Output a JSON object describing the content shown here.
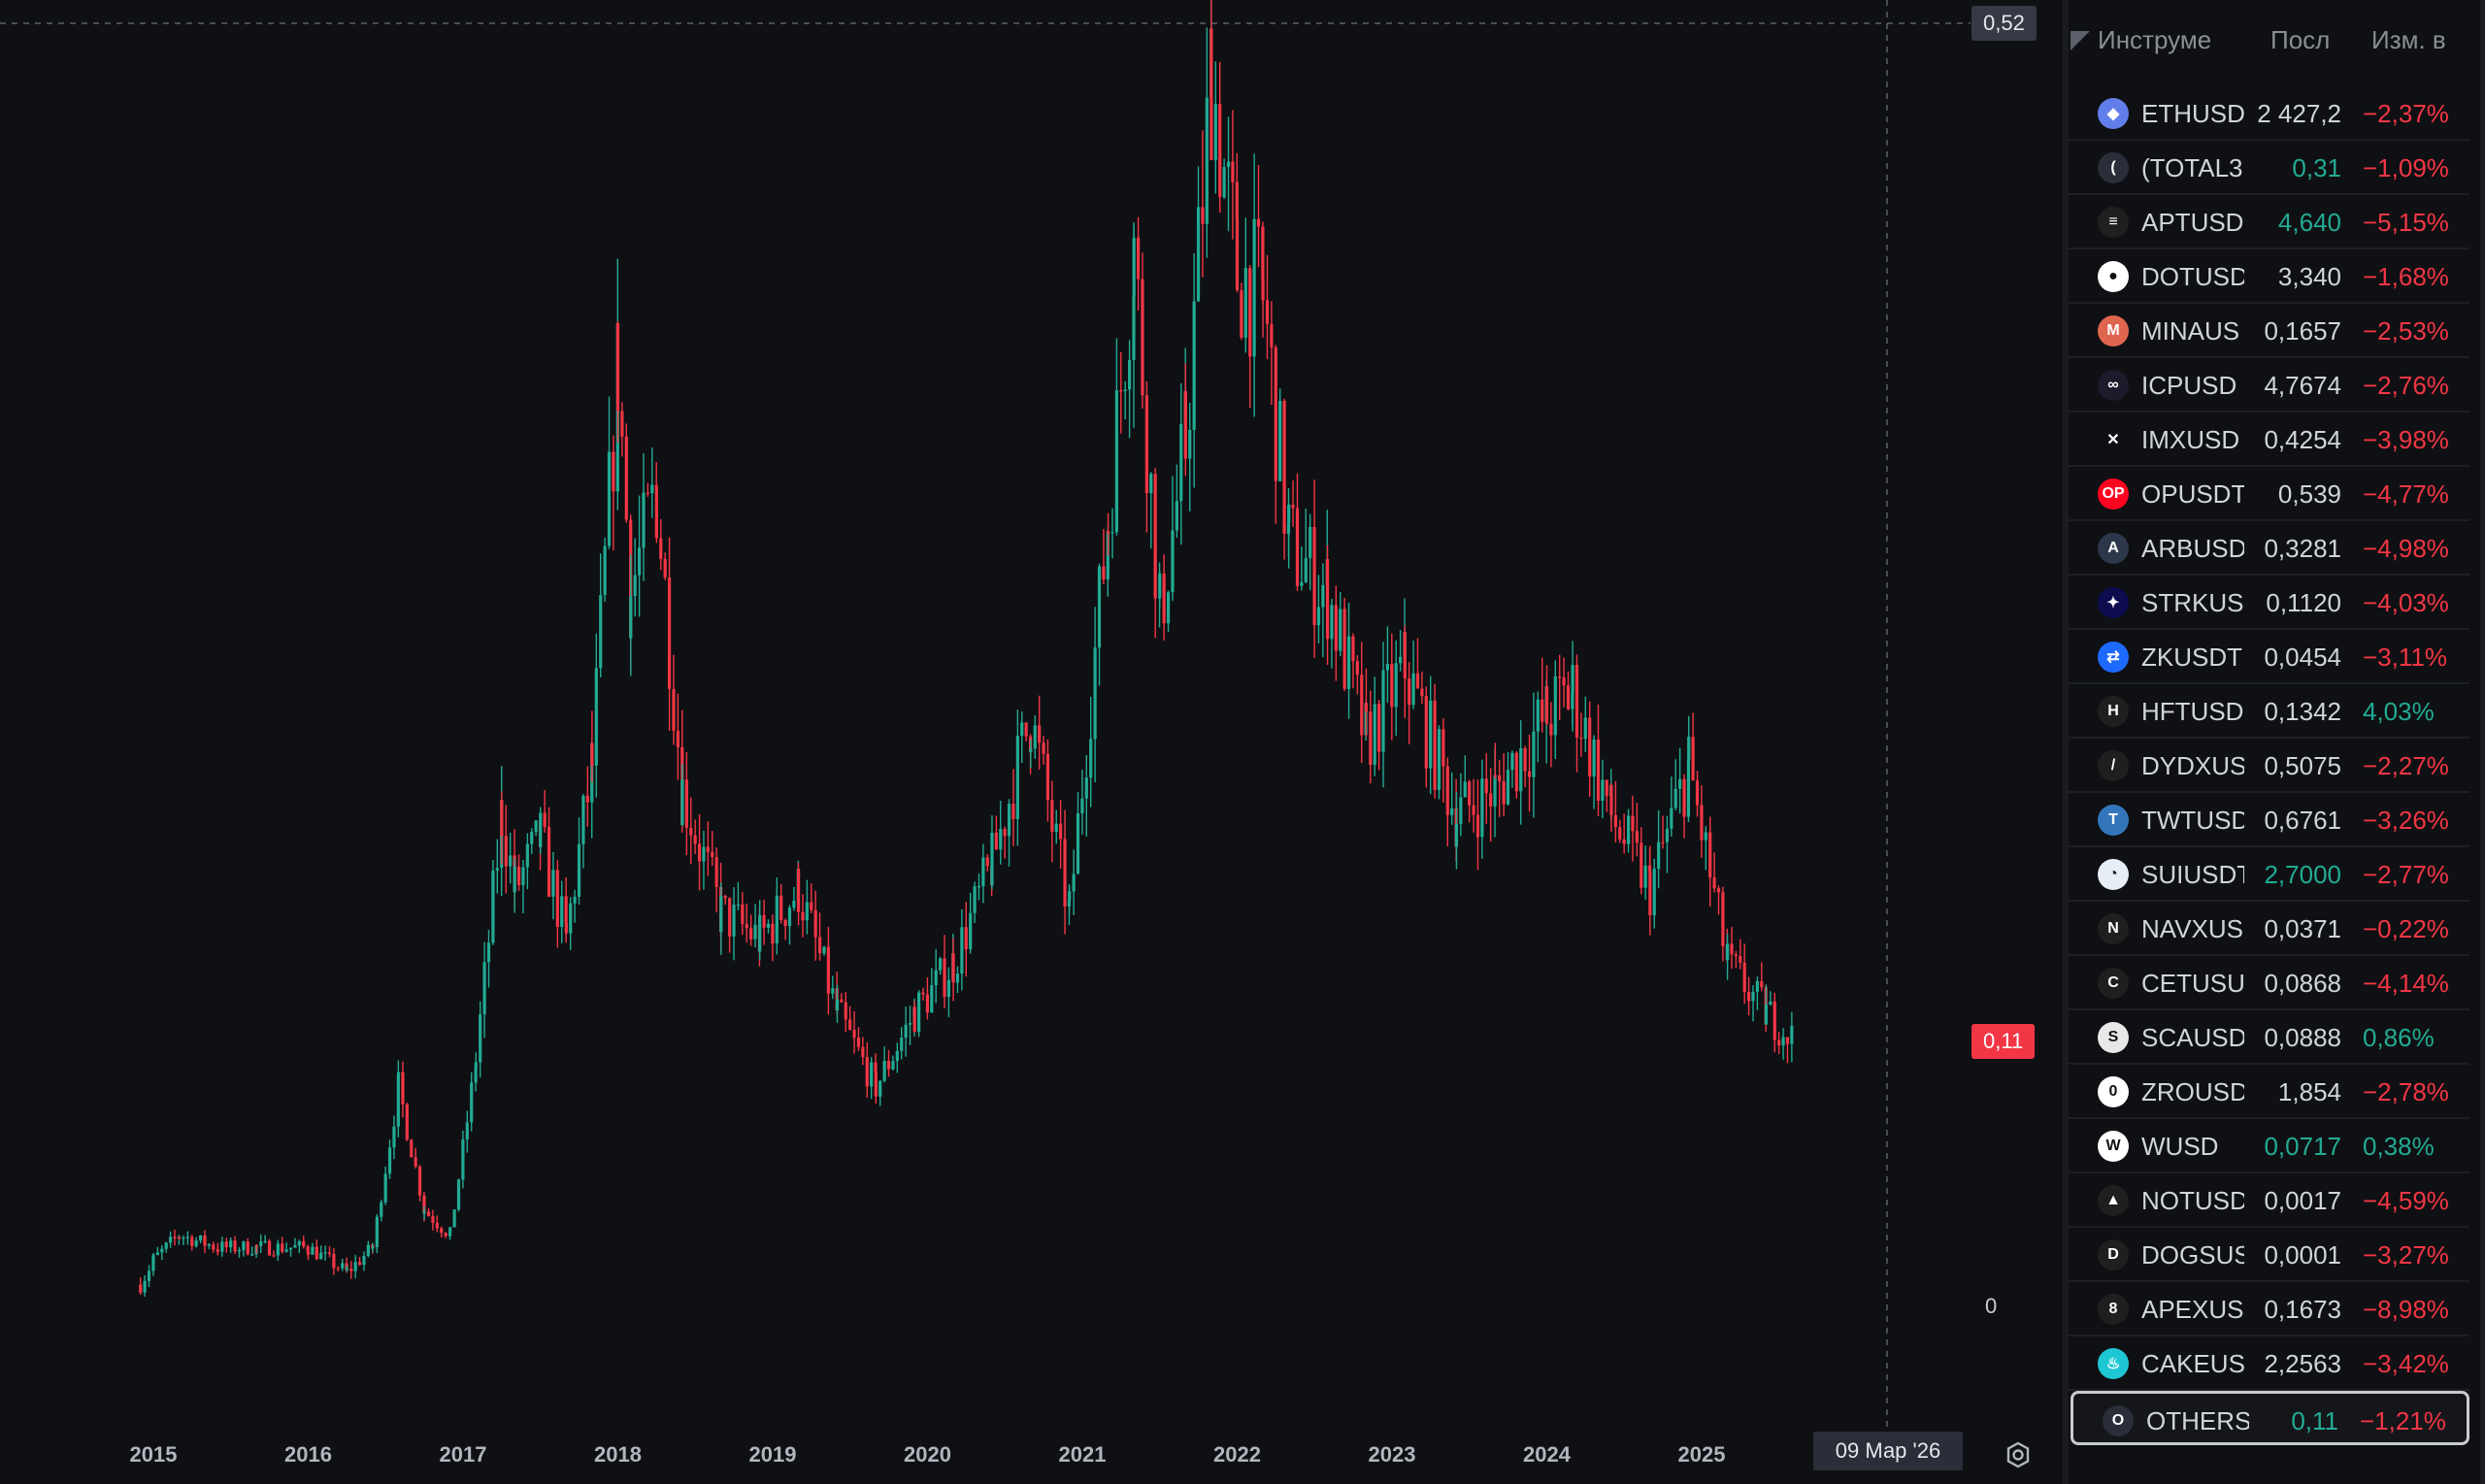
{
  "chart": {
    "price_top_label": "0,52",
    "last_price_label": "0,11",
    "zero_label": "0",
    "crosshair_date": "09 Мар '26",
    "year_labels": [
      "2015",
      "2016",
      "2017",
      "2018",
      "2019",
      "2020",
      "2021",
      "2022",
      "2023",
      "2024",
      "2025"
    ],
    "colors": {
      "up": "#22ab94",
      "down": "#f23645",
      "background": "#0f1013"
    }
  },
  "chart_data": {
    "type": "candlestick",
    "series": [
      {
        "name": "OTHERS",
        "points": [
          [
            "2014-12",
            0.01
          ],
          [
            "2015-01",
            0.02
          ],
          [
            "2015-03",
            0.03
          ],
          [
            "2015-06",
            0.025
          ],
          [
            "2015-09",
            0.025
          ],
          [
            "2016-01",
            0.025
          ],
          [
            "2016-04",
            0.015
          ],
          [
            "2016-06",
            0.025
          ],
          [
            "2016-08",
            0.09
          ],
          [
            "2016-10",
            0.04
          ],
          [
            "2016-12",
            0.03
          ],
          [
            "2017-02",
            0.1
          ],
          [
            "2017-04",
            0.2
          ],
          [
            "2017-05",
            0.17
          ],
          [
            "2017-07",
            0.19
          ],
          [
            "2017-09",
            0.15
          ],
          [
            "2017-11",
            0.22
          ],
          [
            "2018-01",
            0.38
          ],
          [
            "2018-02",
            0.29
          ],
          [
            "2018-04",
            0.33
          ],
          [
            "2018-06",
            0.21
          ],
          [
            "2018-09",
            0.16
          ],
          [
            "2018-12",
            0.15
          ],
          [
            "2019-03",
            0.17
          ],
          [
            "2019-06",
            0.12
          ],
          [
            "2019-09",
            0.09
          ],
          [
            "2019-12",
            0.12
          ],
          [
            "2020-03",
            0.14
          ],
          [
            "2020-06",
            0.18
          ],
          [
            "2020-09",
            0.24
          ],
          [
            "2020-12",
            0.16
          ],
          [
            "2021-03",
            0.32
          ],
          [
            "2021-05",
            0.43
          ],
          [
            "2021-07",
            0.28
          ],
          [
            "2021-09",
            0.35
          ],
          [
            "2021-11",
            0.5
          ],
          [
            "2022-01",
            0.42
          ],
          [
            "2022-03",
            0.41
          ],
          [
            "2022-05",
            0.31
          ],
          [
            "2022-08",
            0.29
          ],
          [
            "2022-11",
            0.23
          ],
          [
            "2023-02",
            0.26
          ],
          [
            "2023-06",
            0.2
          ],
          [
            "2023-09",
            0.21
          ],
          [
            "2024-01",
            0.24
          ],
          [
            "2024-03",
            0.25
          ],
          [
            "2024-06",
            0.2
          ],
          [
            "2024-09",
            0.17
          ],
          [
            "2024-12",
            0.22
          ],
          [
            "2025-03",
            0.14
          ],
          [
            "2025-06",
            0.12
          ],
          [
            "2025-08",
            0.11
          ]
        ]
      }
    ],
    "ylim": [
      0,
      0.52
    ]
  },
  "watchlist": {
    "header": {
      "symbol": "Инструме",
      "last": "Посл",
      "change": "Изм. в"
    },
    "rows": [
      {
        "symbol": "ETHUSD",
        "last": "2 427,2",
        "change": "−2,37%",
        "last_color": "neu",
        "change_color": "neg",
        "logo_bg": "#627eea",
        "logo_char": "◆"
      },
      {
        "symbol": "(TOTAL3",
        "last": "0,31",
        "change": "−1,09%",
        "last_color": "pos",
        "change_color": "neg",
        "logo_bg": "#2a2e39",
        "logo_char": "("
      },
      {
        "symbol": "APTUSD",
        "last": "4,640",
        "change": "−5,15%",
        "last_color": "pos",
        "change_color": "neg",
        "logo_bg": "#1f1f1f",
        "logo_char": "≡"
      },
      {
        "symbol": "DOTUSD",
        "last": "3,340",
        "change": "−1,68%",
        "last_color": "neu",
        "change_color": "neg",
        "logo_bg": "#ffffff",
        "logo_char": "●"
      },
      {
        "symbol": "MINAUS",
        "last": "0,1657",
        "change": "−2,53%",
        "last_color": "neu",
        "change_color": "neg",
        "logo_bg": "#e0654f",
        "logo_char": "M"
      },
      {
        "symbol": "ICPUSD",
        "last": "4,7674",
        "change": "−2,76%",
        "last_color": "neu",
        "change_color": "neg",
        "logo_bg": "#1b1b2b",
        "logo_char": "∞"
      },
      {
        "symbol": "IMXUSD",
        "last": "0,4254",
        "change": "−3,98%",
        "last_color": "neu",
        "change_color": "neg",
        "logo_bg": "#0f1013",
        "logo_char": "✕"
      },
      {
        "symbol": "OPUSDT",
        "last": "0,539",
        "change": "−4,77%",
        "last_color": "neu",
        "change_color": "neg",
        "logo_bg": "#ff0420",
        "logo_char": "OP"
      },
      {
        "symbol": "ARBUSD",
        "last": "0,3281",
        "change": "−4,98%",
        "last_color": "neu",
        "change_color": "neg",
        "logo_bg": "#2d374b",
        "logo_char": "A"
      },
      {
        "symbol": "STRKUS",
        "last": "0,1120",
        "change": "−4,03%",
        "last_color": "neu",
        "change_color": "neg",
        "logo_bg": "#0c0c4f",
        "logo_char": "✦"
      },
      {
        "symbol": "ZKUSDT",
        "last": "0,0454",
        "change": "−3,11%",
        "last_color": "neu",
        "change_color": "neg",
        "logo_bg": "#1e69ff",
        "logo_char": "⇄"
      },
      {
        "symbol": "HFTUSD",
        "last": "0,1342",
        "change": "4,03%",
        "last_color": "neu",
        "change_color": "pos",
        "logo_bg": "#1f1f1f",
        "logo_char": "H"
      },
      {
        "symbol": "DYDXUS",
        "last": "0,5075",
        "change": "−2,27%",
        "last_color": "neu",
        "change_color": "neg",
        "logo_bg": "#1f1f1f",
        "logo_char": "/"
      },
      {
        "symbol": "TWTUSD",
        "last": "0,6761",
        "change": "−3,26%",
        "last_color": "neu",
        "change_color": "neg",
        "logo_bg": "#3375bb",
        "logo_char": "T"
      },
      {
        "symbol": "SUIUSDT",
        "last": "2,7000",
        "change": "−2,77%",
        "last_color": "pos",
        "change_color": "neg",
        "logo_bg": "#e8eef5",
        "logo_char": "◔"
      },
      {
        "symbol": "NAVXUS",
        "last": "0,0371",
        "change": "−0,22%",
        "last_color": "neu",
        "change_color": "neg",
        "logo_bg": "#1f1f1f",
        "logo_char": "N"
      },
      {
        "symbol": "CETUSU",
        "last": "0,0868",
        "change": "−4,14%",
        "last_color": "neu",
        "change_color": "neg",
        "logo_bg": "#1f1f1f",
        "logo_char": "C"
      },
      {
        "symbol": "SCAUSD",
        "last": "0,0888",
        "change": "0,86%",
        "last_color": "neu",
        "change_color": "pos",
        "logo_bg": "#e8e8e8",
        "logo_char": "S"
      },
      {
        "symbol": "ZROUSD",
        "last": "1,854",
        "change": "−2,78%",
        "last_color": "neu",
        "change_color": "neg",
        "logo_bg": "#ffffff",
        "logo_char": "0"
      },
      {
        "symbol": "WUSD",
        "last": "0,0717",
        "change": "0,38%",
        "last_color": "pos",
        "change_color": "pos",
        "logo_bg": "#ffffff",
        "logo_char": "W"
      },
      {
        "symbol": "NOTUSD",
        "last": "0,0017",
        "change": "−4,59%",
        "last_color": "neu",
        "change_color": "neg",
        "logo_bg": "#1f1f1f",
        "logo_char": "▲"
      },
      {
        "symbol": "DOGSUS",
        "last": "0,0001",
        "change": "−3,27%",
        "last_color": "neu",
        "change_color": "neg",
        "logo_bg": "#1f1f1f",
        "logo_char": "D"
      },
      {
        "symbol": "APEXUS",
        "last": "0,1673",
        "change": "−8,98%",
        "last_color": "neu",
        "change_color": "neg",
        "logo_bg": "#1f1f1f",
        "logo_char": "8"
      },
      {
        "symbol": "CAKEUS",
        "last": "2,2563",
        "change": "−3,42%",
        "last_color": "neu",
        "change_color": "neg",
        "logo_bg": "#1fc7d4",
        "logo_char": "♨"
      },
      {
        "symbol": "OTHERS",
        "last": "0,11",
        "change": "−1,21%",
        "last_color": "pos",
        "change_color": "neg",
        "logo_bg": "#2a2e39",
        "logo_char": "O",
        "selected": true
      }
    ]
  }
}
